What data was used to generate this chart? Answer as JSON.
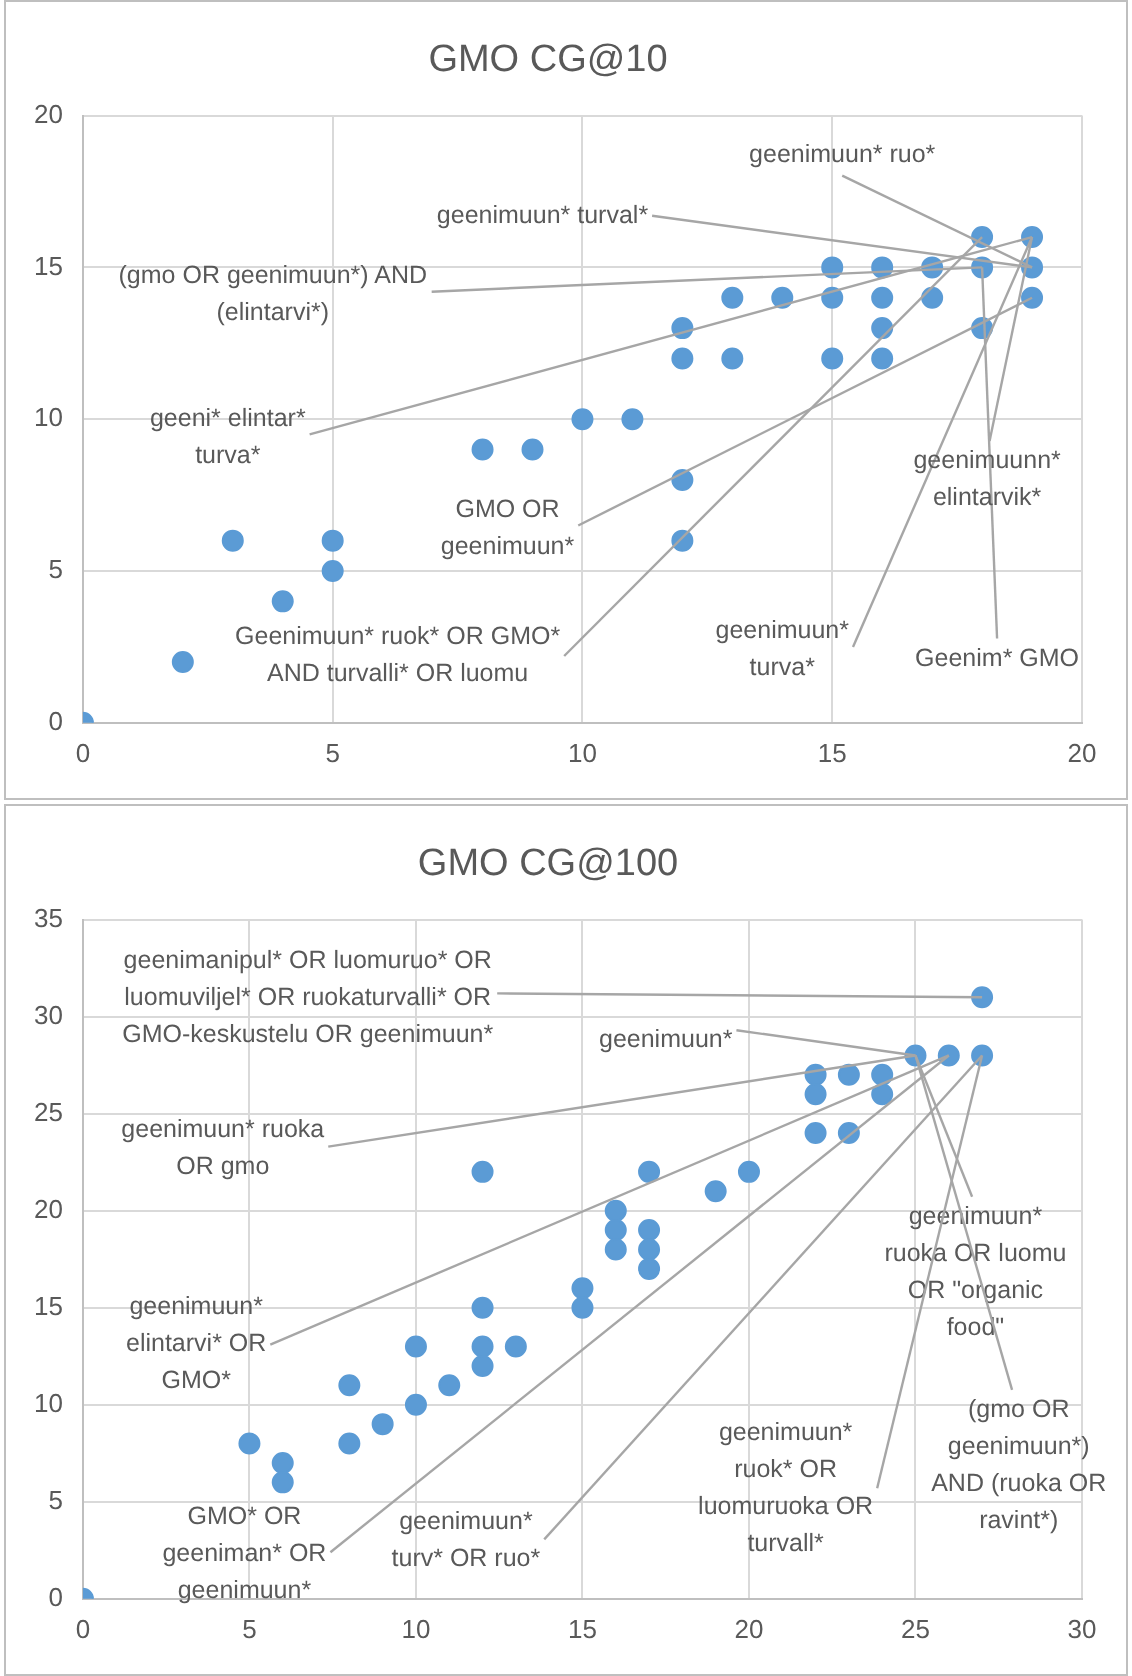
{
  "chart_data": [
    {
      "type": "scatter",
      "title": "GMO CG@10",
      "x": [
        0,
        2,
        3,
        4,
        5,
        5,
        8,
        9,
        10,
        11,
        12,
        12,
        12,
        12,
        13,
        13,
        14,
        15,
        15,
        15,
        16,
        16,
        16,
        16,
        17,
        17,
        18,
        18,
        18,
        19,
        19,
        19
      ],
      "values": [
        0,
        2,
        6,
        4,
        6,
        5,
        9,
        9,
        10,
        10,
        13,
        12,
        8,
        6,
        14,
        12,
        14,
        15,
        14,
        12,
        15,
        14,
        13,
        12,
        15,
        14,
        16,
        15,
        13,
        16,
        15,
        14
      ],
      "color": "#5b9bd5",
      "marker": "circle",
      "grid": true,
      "xlim": [
        0,
        20
      ],
      "xticks": [
        0,
        5,
        10,
        15,
        20
      ],
      "ylim": [
        0,
        20
      ],
      "yticks": [
        0,
        5,
        10,
        15,
        20
      ],
      "annotations": [
        {
          "text": "geenimuun* ruo*",
          "x": 19,
          "y": 15
        },
        {
          "text": "geenimuun* turval*",
          "x": 19,
          "y": 15
        },
        {
          "text": "(gmo OR geenimuun*) AND (elintarvi*)",
          "x": 18,
          "y": 15
        },
        {
          "text": "geeni* elintar* turva*",
          "x": 19,
          "y": 16
        },
        {
          "text": "GMO OR geenimuun*",
          "x": 19,
          "y": 14
        },
        {
          "text": "Geenimuun* ruok* OR GMO* AND turvalli* OR luomu",
          "x": 18,
          "y": 16
        },
        {
          "text": "geenimuun* turva*",
          "x": 19,
          "y": 16
        },
        {
          "text": "Geenim* GMO",
          "x": 18,
          "y": 15
        },
        {
          "text": "geenimuunn* elintarvik*",
          "x": 19,
          "y": 16
        }
      ]
    },
    {
      "type": "scatter",
      "title": "GMO CG@100",
      "x": [
        0,
        5,
        6,
        6,
        8,
        8,
        9,
        10,
        10,
        11,
        12,
        12,
        12,
        13,
        15,
        15,
        12,
        16,
        16,
        16,
        17,
        17,
        17,
        17,
        19,
        20,
        22,
        22,
        22,
        23,
        23,
        24,
        24,
        25,
        26,
        27,
        27
      ],
      "values": [
        0,
        8,
        7,
        6,
        11,
        8,
        9,
        13,
        10,
        11,
        15,
        13,
        12,
        13,
        16,
        15,
        22,
        20,
        19,
        18,
        22,
        19,
        18,
        17,
        21,
        22,
        27,
        26,
        24,
        27,
        24,
        27,
        26,
        28,
        28,
        31,
        28
      ],
      "color": "#5b9bd5",
      "marker": "circle",
      "grid": true,
      "xlim": [
        0,
        30
      ],
      "xticks": [
        0,
        5,
        10,
        15,
        20,
        25,
        30
      ],
      "ylim": [
        0,
        35
      ],
      "yticks": [
        0,
        5,
        10,
        15,
        20,
        25,
        30,
        35
      ],
      "annotations": [
        {
          "text": "geenimanipul* OR luomuruo* OR luomuviljel* OR ruokaturvalli* OR GMO-keskustelu OR geenimuun*",
          "x": 27,
          "y": 31
        },
        {
          "text": "geenimuun*",
          "x": 25,
          "y": 28
        },
        {
          "text": "geenimuun* ruoka OR gmo",
          "x": 25,
          "y": 28
        },
        {
          "text": "geenimuun* ruoka OR luomu OR \"organic food\"",
          "x": 25,
          "y": 28
        },
        {
          "text": "(gmo OR geenimuun*) AND (ruoka OR ravint*)",
          "x": 25,
          "y": 28
        },
        {
          "text": "geenimuun* elintarvi* OR GMO*",
          "x": 26,
          "y": 28
        },
        {
          "text": "GMO* OR geeniman* OR geenimuun*",
          "x": 26,
          "y": 28
        },
        {
          "text": "geenimuun* turv* OR ruo*",
          "x": 27,
          "y": 28
        },
        {
          "text": "geenimuun* ruok* OR luomuruoka OR turvall*",
          "x": 27,
          "y": 28
        }
      ]
    }
  ]
}
